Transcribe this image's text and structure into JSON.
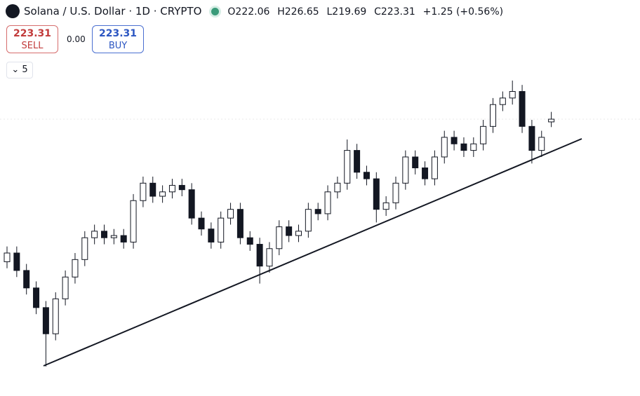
{
  "header": {
    "symbol": "Solana / U.S. Dollar · 1D · CRYPTO",
    "ohlc": [
      "O222.06",
      "H226.65",
      "L219.69",
      "C223.31",
      "+1.25 (+0.56%)"
    ],
    "sell_price": "223.31",
    "sell_label": "SELL",
    "spread": "0.00",
    "buy_price": "223.31",
    "buy_label": "BUY",
    "indicator": "5"
  },
  "chart_data": {
    "type": "candlestick",
    "ylim": [
      96.5,
      277.9
    ],
    "open": [
      158,
      162,
      154,
      146,
      137,
      125,
      141,
      151,
      159,
      169,
      172,
      169,
      170,
      167,
      186,
      194,
      188,
      190,
      193,
      191,
      178,
      173,
      167,
      178,
      182,
      169,
      166,
      156,
      164,
      174,
      170,
      172,
      182,
      180,
      190,
      194,
      209,
      199,
      196,
      182,
      185,
      194,
      206,
      201,
      196,
      206,
      215,
      212,
      209,
      212,
      220,
      230,
      233,
      236,
      220,
      209,
      222.06
    ],
    "high": [
      165,
      165,
      157,
      149,
      140,
      144,
      154,
      162,
      172,
      175,
      175,
      173,
      173,
      189,
      197,
      197,
      193,
      196,
      196,
      194,
      181,
      176,
      181,
      185,
      185,
      172,
      169,
      167,
      177,
      177,
      175,
      185,
      185,
      193,
      197,
      214,
      212,
      202,
      199,
      188,
      197,
      209,
      209,
      204,
      209,
      218,
      218,
      215,
      215,
      223,
      233,
      236,
      241,
      239,
      223,
      218,
      226.65
    ],
    "low": [
      155,
      151,
      143,
      134,
      110,
      122,
      138,
      148,
      156,
      166,
      166,
      166,
      164,
      164,
      183,
      185,
      185,
      187,
      188,
      175,
      170,
      164,
      164,
      175,
      166,
      163,
      148,
      153,
      161,
      167,
      167,
      169,
      177,
      177,
      187,
      191,
      196,
      193,
      176,
      179,
      182,
      191,
      198,
      193,
      193,
      203,
      209,
      206,
      206,
      209,
      217,
      227,
      230,
      217,
      203,
      206,
      219.69
    ],
    "close": [
      162,
      154,
      146,
      137,
      125,
      141,
      151,
      159,
      169,
      172,
      169,
      170,
      167,
      186,
      194,
      188,
      190,
      193,
      191,
      178,
      173,
      167,
      178,
      182,
      169,
      166,
      156,
      164,
      174,
      170,
      172,
      182,
      180,
      190,
      194,
      209,
      199,
      196,
      182,
      185,
      194,
      206,
      201,
      196,
      206,
      215,
      212,
      209,
      212,
      220,
      230,
      233,
      236,
      220,
      209,
      215,
      223.31
    ]
  }
}
